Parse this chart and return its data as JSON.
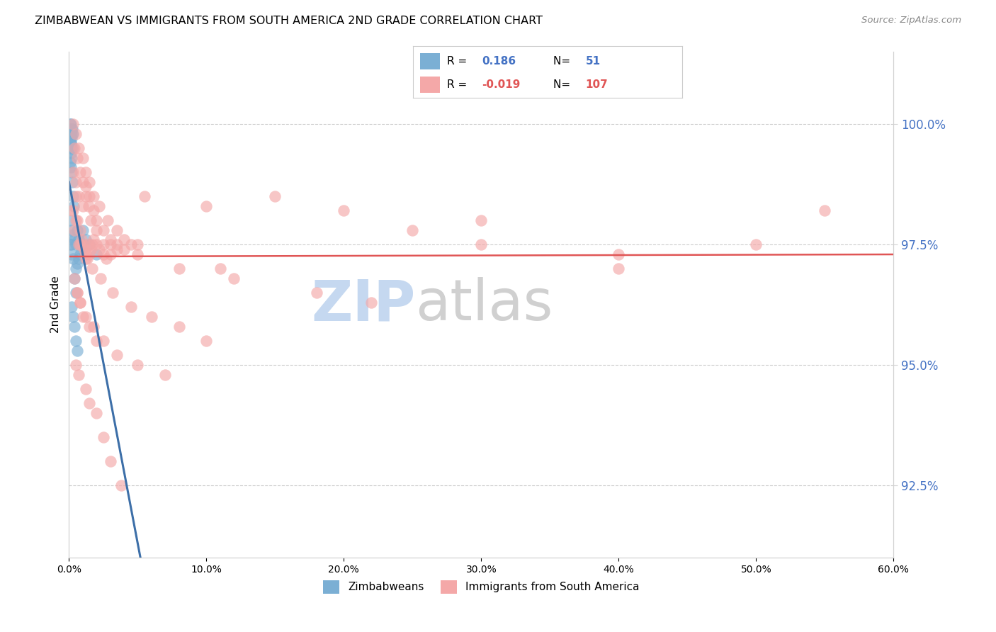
{
  "title": "ZIMBABWEAN VS IMMIGRANTS FROM SOUTH AMERICA 2ND GRADE CORRELATION CHART",
  "source": "Source: ZipAtlas.com",
  "ylabel": "2nd Grade",
  "right_yticks": [
    92.5,
    95.0,
    97.5,
    100.0
  ],
  "right_ytick_labels": [
    "92.5%",
    "95.0%",
    "97.5%",
    "100.0%"
  ],
  "xmin": 0.0,
  "xmax": 60.0,
  "ymin": 91.0,
  "ymax": 101.5,
  "blue_R": "0.186",
  "blue_N": "51",
  "pink_R": "-0.019",
  "pink_N": "107",
  "blue_color": "#7bafd4",
  "pink_color": "#f4a8a8",
  "blue_line_color": "#3d6fa8",
  "pink_line_color": "#e05555",
  "watermark_zip_color": "#c5d8f0",
  "watermark_atlas_color": "#d0d0d0",
  "legend_label_blue": "Zimbabweans",
  "legend_label_pink": "Immigrants from South America",
  "blue_scatter_x": [
    0.1,
    0.15,
    0.2,
    0.25,
    0.1,
    0.15,
    0.2,
    0.25,
    0.3,
    0.1,
    0.15,
    0.2,
    0.1,
    0.15,
    0.2,
    0.25,
    0.3,
    0.35,
    0.1,
    0.15,
    0.2,
    0.3,
    0.4,
    0.5,
    0.6,
    0.7,
    0.1,
    0.15,
    0.2,
    0.3,
    0.1,
    0.2,
    0.3,
    0.4,
    0.5,
    1.0,
    1.2,
    1.5,
    2.0,
    0.5,
    0.6,
    0.7,
    0.8,
    0.9,
    1.0,
    0.2,
    0.3,
    0.4,
    0.5,
    0.6,
    0.15
  ],
  "blue_scatter_y": [
    100.0,
    100.0,
    99.9,
    99.8,
    99.7,
    99.6,
    99.5,
    99.9,
    99.8,
    99.5,
    99.4,
    99.3,
    99.2,
    99.1,
    99.0,
    98.8,
    98.5,
    98.3,
    98.0,
    97.8,
    97.5,
    97.7,
    97.6,
    97.5,
    97.8,
    97.6,
    99.9,
    99.8,
    99.7,
    99.5,
    97.5,
    97.3,
    97.2,
    96.8,
    96.5,
    97.8,
    97.6,
    97.5,
    97.3,
    97.0,
    97.1,
    97.2,
    97.3,
    97.4,
    97.5,
    96.2,
    96.0,
    95.8,
    95.5,
    95.3,
    99.6
  ],
  "pink_scatter_x": [
    0.2,
    0.4,
    0.5,
    0.6,
    0.7,
    0.8,
    0.9,
    1.0,
    1.1,
    1.2,
    1.3,
    1.4,
    1.5,
    1.6,
    1.7,
    1.8,
    2.0,
    2.2,
    2.5,
    2.7,
    3.0,
    3.5,
    4.0,
    4.5,
    5.0,
    0.3,
    0.5,
    0.7,
    1.0,
    1.2,
    1.5,
    1.8,
    2.0,
    2.5,
    3.0,
    3.5,
    4.0,
    0.4,
    0.6,
    0.8,
    1.0,
    1.2,
    1.4,
    1.6,
    2.0,
    2.5,
    3.0,
    0.3,
    0.5,
    0.7,
    1.0,
    1.2,
    1.5,
    1.8,
    2.2,
    2.8,
    3.5,
    0.6,
    0.8,
    1.0,
    1.5,
    2.0,
    0.5,
    0.7,
    1.2,
    1.5,
    2.0,
    2.5,
    3.0,
    3.8,
    5.5,
    10.0,
    11.0,
    0.4,
    0.6,
    0.8,
    1.2,
    1.8,
    2.5,
    3.5,
    5.0,
    7.0,
    0.3,
    0.5,
    0.8,
    1.2,
    1.7,
    2.3,
    3.2,
    4.5,
    6.0,
    8.0,
    10.0,
    15.0,
    20.0,
    25.0,
    30.0,
    40.0,
    50.0,
    55.0,
    30.0,
    40.0,
    5.0,
    8.0,
    12.0,
    18.0,
    22.0
  ],
  "pink_scatter_y": [
    98.2,
    97.8,
    98.5,
    98.0,
    97.5,
    97.8,
    97.6,
    97.5,
    97.4,
    97.3,
    97.2,
    97.5,
    97.3,
    97.4,
    97.5,
    97.6,
    97.5,
    97.4,
    97.3,
    97.2,
    97.5,
    97.4,
    97.6,
    97.5,
    97.3,
    99.0,
    98.8,
    98.5,
    98.3,
    98.7,
    98.5,
    98.2,
    98.0,
    97.8,
    97.6,
    97.5,
    97.4,
    99.5,
    99.3,
    99.0,
    98.8,
    98.5,
    98.3,
    98.0,
    97.8,
    97.5,
    97.3,
    100.0,
    99.8,
    99.5,
    99.3,
    99.0,
    98.8,
    98.5,
    98.3,
    98.0,
    97.8,
    96.5,
    96.3,
    96.0,
    95.8,
    95.5,
    95.0,
    94.8,
    94.5,
    94.2,
    94.0,
    93.5,
    93.0,
    92.5,
    98.5,
    98.3,
    97.0,
    96.8,
    96.5,
    96.3,
    96.0,
    95.8,
    95.5,
    95.2,
    95.0,
    94.8,
    98.2,
    98.0,
    97.5,
    97.2,
    97.0,
    96.8,
    96.5,
    96.2,
    96.0,
    95.8,
    95.5,
    98.5,
    98.2,
    97.8,
    97.5,
    97.3,
    97.5,
    98.2,
    98.0,
    97.0,
    97.5,
    97.0,
    96.8,
    96.5,
    96.3
  ]
}
